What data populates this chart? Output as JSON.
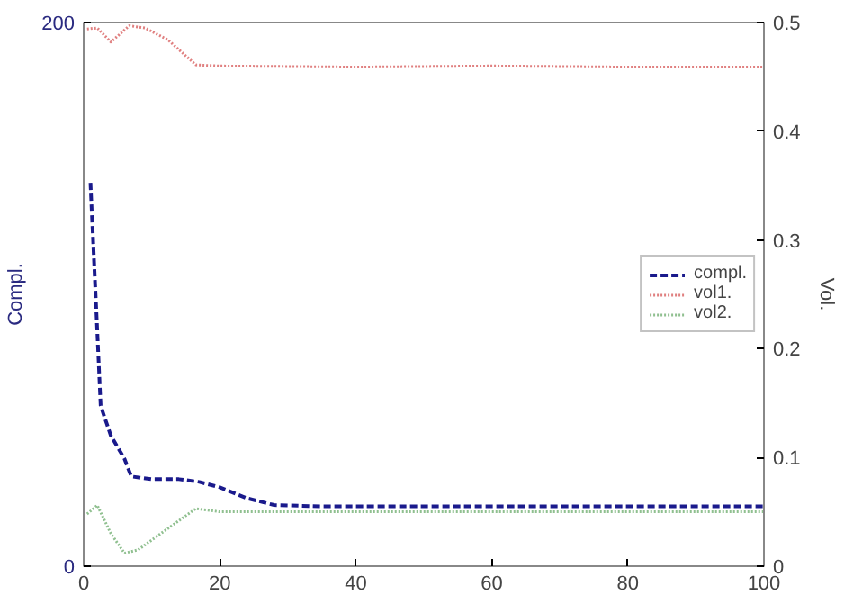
{
  "chart_data": {
    "type": "line",
    "xlabel": null,
    "ylabel": "Compl.",
    "y2label": "Vol.",
    "xlim": [
      0,
      100
    ],
    "xticks": [
      0,
      20,
      40,
      60,
      80,
      100
    ],
    "ylim": [
      0,
      200
    ],
    "yticks": [
      0,
      200
    ],
    "y2lim": [
      0,
      0.5
    ],
    "y2ticks": [
      0,
      0.1,
      0.2,
      0.3,
      0.4,
      0.5
    ],
    "grid": false,
    "legend": "right",
    "series": [
      {
        "name": "compl.",
        "color": "#1a1a8c",
        "line_style": "dashed",
        "x": [
          1,
          2.5,
          4,
          6,
          7,
          10,
          14,
          17,
          20,
          24,
          28,
          35,
          50,
          70,
          100
        ],
        "values": [
          141,
          59,
          48,
          39.5,
          33,
          32,
          32,
          31,
          29,
          25,
          22.5,
          22,
          22,
          22,
          22
        ]
      },
      {
        "name": "vol1.",
        "color": "#e08080",
        "line_style": "dotted",
        "axis": "y2",
        "x": [
          0.5,
          2,
          4,
          6.7,
          9,
          12.4,
          16.5,
          20,
          40,
          60,
          80,
          100
        ],
        "values": [
          0.494,
          0.495,
          0.482,
          0.497,
          0.495,
          0.484,
          0.461,
          0.46,
          0.459,
          0.46,
          0.459,
          0.459
        ]
      },
      {
        "name": "vol2.",
        "color": "#90c090",
        "line_style": "dotted",
        "axis": "y2",
        "x": [
          0.5,
          2,
          4,
          6,
          8,
          12,
          16.5,
          20,
          40,
          60,
          80,
          100
        ],
        "values": [
          0.048,
          0.056,
          0.03,
          0.012,
          0.015,
          0.033,
          0.053,
          0.05,
          0.05,
          0.05,
          0.05,
          0.05
        ]
      }
    ]
  }
}
